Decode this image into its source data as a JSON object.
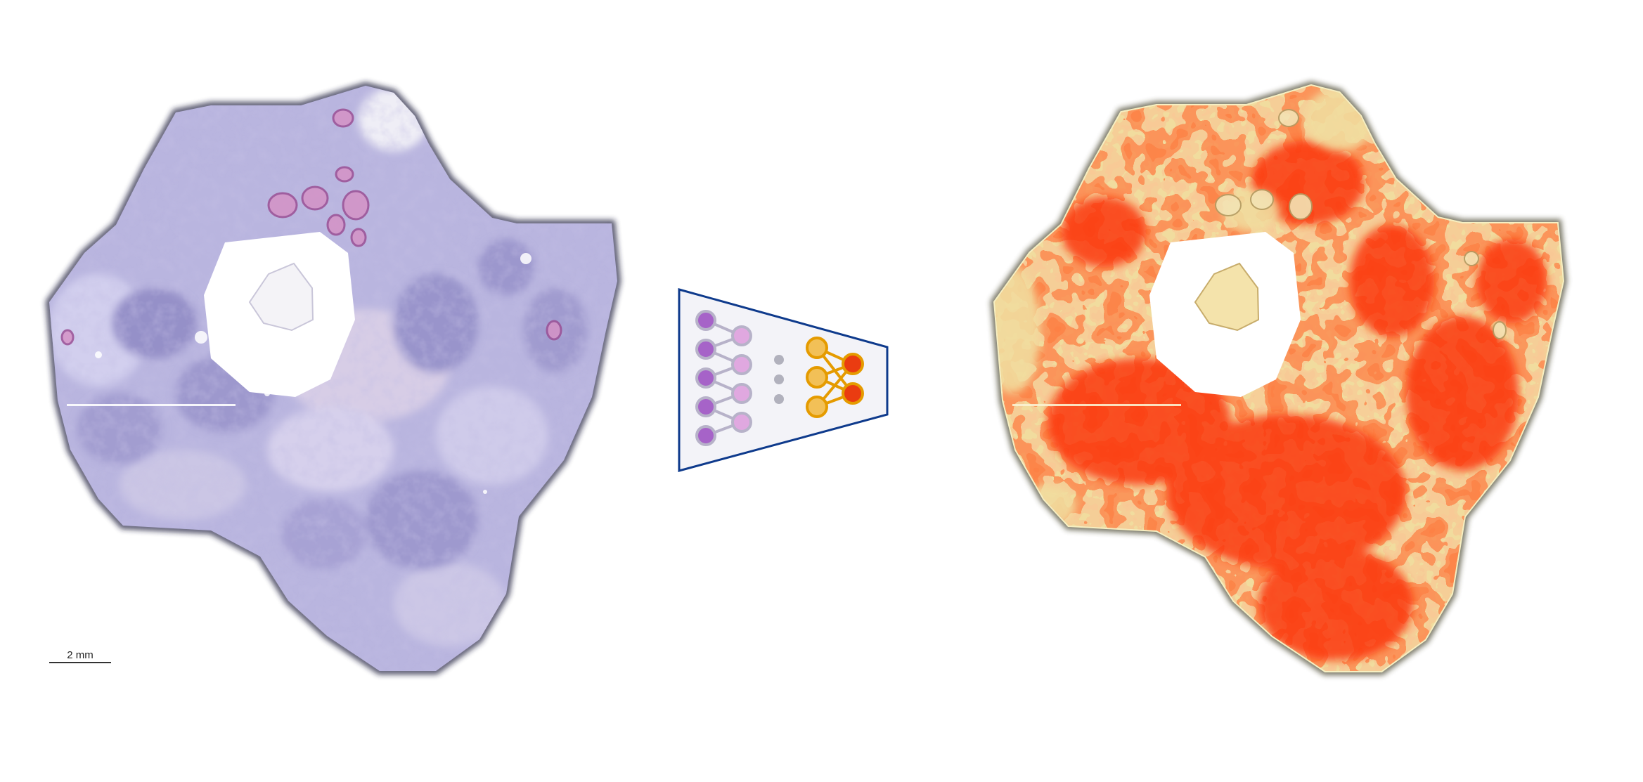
{
  "figure": {
    "panels": [
      {
        "id": "he-slide",
        "kind": "H&E whole-slide tissue image"
      },
      {
        "id": "model",
        "kind": "neural network schematic"
      },
      {
        "id": "heatmap",
        "kind": "tissue heatmap overlay"
      }
    ],
    "scale_bar": {
      "label": "2 mm"
    },
    "colors": {
      "tissue_base": "#b9b5df",
      "tissue_light": "#d2cfee",
      "tissue_dark": "#9590c8",
      "gland_pink": "#d592c6",
      "model_border": "#0e3a8c",
      "model_fill": "#f3f3f8",
      "node_purple": "#a663c8",
      "node_pink": "#e0a8e0",
      "node_ring": "#b7b2c9",
      "dot_gray": "#b1b1bd",
      "node_gold": "#f2c057",
      "node_gold_ring": "#e59b00",
      "node_red": "#ea3c11",
      "heat_high": "#fb3710",
      "heat_mid": "#f58a4a",
      "heat_low": "#f1dc9e",
      "heat_edge": "#3e3a22"
    },
    "icons": {
      "input_layer": "purple-node-column",
      "hidden_layer": "pink-node-column",
      "ellipsis": "three-dot-ellipsis",
      "head_layer": "gold-node-column",
      "output_layer": "red-output-nodes"
    }
  }
}
